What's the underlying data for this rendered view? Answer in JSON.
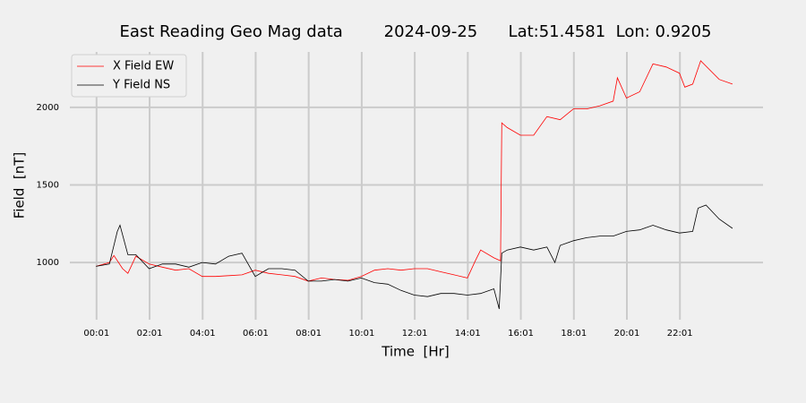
{
  "chart_data": {
    "type": "line",
    "title": "East Reading Geo Mag data        2024-09-25      Lat:51.4581  Lon: 0.9205",
    "x_label": "Time  [Hr]",
    "y_label": "Field  [nT]",
    "xlim": [
      -0.99,
      25.15
    ],
    "ylim": [
      631,
      2357
    ],
    "xticks": [
      {
        "value": 0.0167,
        "label": "00:01"
      },
      {
        "value": 2.0167,
        "label": "02:01"
      },
      {
        "value": 4.0167,
        "label": "04:01"
      },
      {
        "value": 6.0167,
        "label": "06:01"
      },
      {
        "value": 8.0167,
        "label": "08:01"
      },
      {
        "value": 10.0167,
        "label": "10:01"
      },
      {
        "value": 12.0167,
        "label": "12:01"
      },
      {
        "value": 14.0167,
        "label": "14:01"
      },
      {
        "value": 16.0167,
        "label": "16:01"
      },
      {
        "value": 18.0167,
        "label": "18:01"
      },
      {
        "value": 20.0167,
        "label": "20:01"
      },
      {
        "value": 22.0167,
        "label": "22:01"
      }
    ],
    "yticks": [
      1000,
      1500,
      2000
    ],
    "grid": true,
    "legend": "upper left",
    "series": [
      {
        "name": "X Field EW",
        "color": "#ff0000",
        "x": [
          0,
          0.5,
          0.67,
          1.0,
          1.2,
          1.5,
          2.0,
          2.5,
          3.0,
          3.5,
          4.0,
          4.5,
          5.0,
          5.5,
          6.0,
          6.5,
          7.0,
          7.5,
          8.0,
          8.5,
          9.0,
          9.5,
          10.0,
          10.5,
          11.0,
          11.5,
          12.0,
          12.5,
          13.0,
          13.5,
          14.0,
          14.3,
          14.5,
          15.0,
          15.25,
          15.3,
          15.5,
          16.0,
          16.5,
          17.0,
          17.5,
          18.0,
          18.5,
          19.0,
          19.5,
          19.66,
          20.0,
          20.5,
          21.0,
          21.5,
          22.0,
          22.2,
          22.5,
          22.8,
          23.5,
          24.0
        ],
        "values": [
          975,
          1000,
          1045,
          960,
          930,
          1040,
          990,
          970,
          950,
          960,
          910,
          910,
          915,
          920,
          950,
          930,
          920,
          910,
          880,
          900,
          890,
          885,
          910,
          950,
          960,
          950,
          960,
          960,
          940,
          920,
          900,
          1010,
          1080,
          1030,
          1010,
          1900,
          1870,
          1820,
          1820,
          1940,
          1920,
          1990,
          1990,
          2010,
          2040,
          2190,
          2060,
          2100,
          2280,
          2260,
          2220,
          2130,
          2150,
          2300,
          2180,
          2150
        ]
      },
      {
        "name": "Y Field NS",
        "color": "#000000",
        "x": [
          0,
          0.5,
          0.8,
          0.9,
          1.2,
          1.5,
          2.0,
          2.5,
          3.0,
          3.5,
          4.0,
          4.5,
          5.0,
          5.5,
          6.0,
          6.5,
          7.0,
          7.5,
          8.0,
          8.5,
          9.0,
          9.5,
          10.0,
          10.5,
          11.0,
          11.5,
          12.0,
          12.5,
          13.0,
          13.5,
          14.0,
          14.5,
          15.0,
          15.2,
          15.3,
          15.5,
          16.0,
          16.5,
          17.0,
          17.3,
          17.5,
          18.0,
          18.5,
          19.0,
          19.5,
          20.0,
          20.5,
          21.0,
          21.5,
          22.0,
          22.5,
          22.7,
          23.0,
          23.5,
          24.0
        ],
        "values": [
          975,
          990,
          1200,
          1240,
          1050,
          1050,
          960,
          990,
          990,
          970,
          1000,
          990,
          1040,
          1060,
          910,
          960,
          960,
          950,
          880,
          880,
          890,
          880,
          900,
          870,
          860,
          820,
          790,
          780,
          800,
          800,
          790,
          800,
          830,
          700,
          1060,
          1080,
          1100,
          1080,
          1100,
          1000,
          1110,
          1140,
          1160,
          1170,
          1170,
          1200,
          1210,
          1240,
          1210,
          1190,
          1200,
          1350,
          1370,
          1280,
          1220
        ]
      }
    ]
  }
}
